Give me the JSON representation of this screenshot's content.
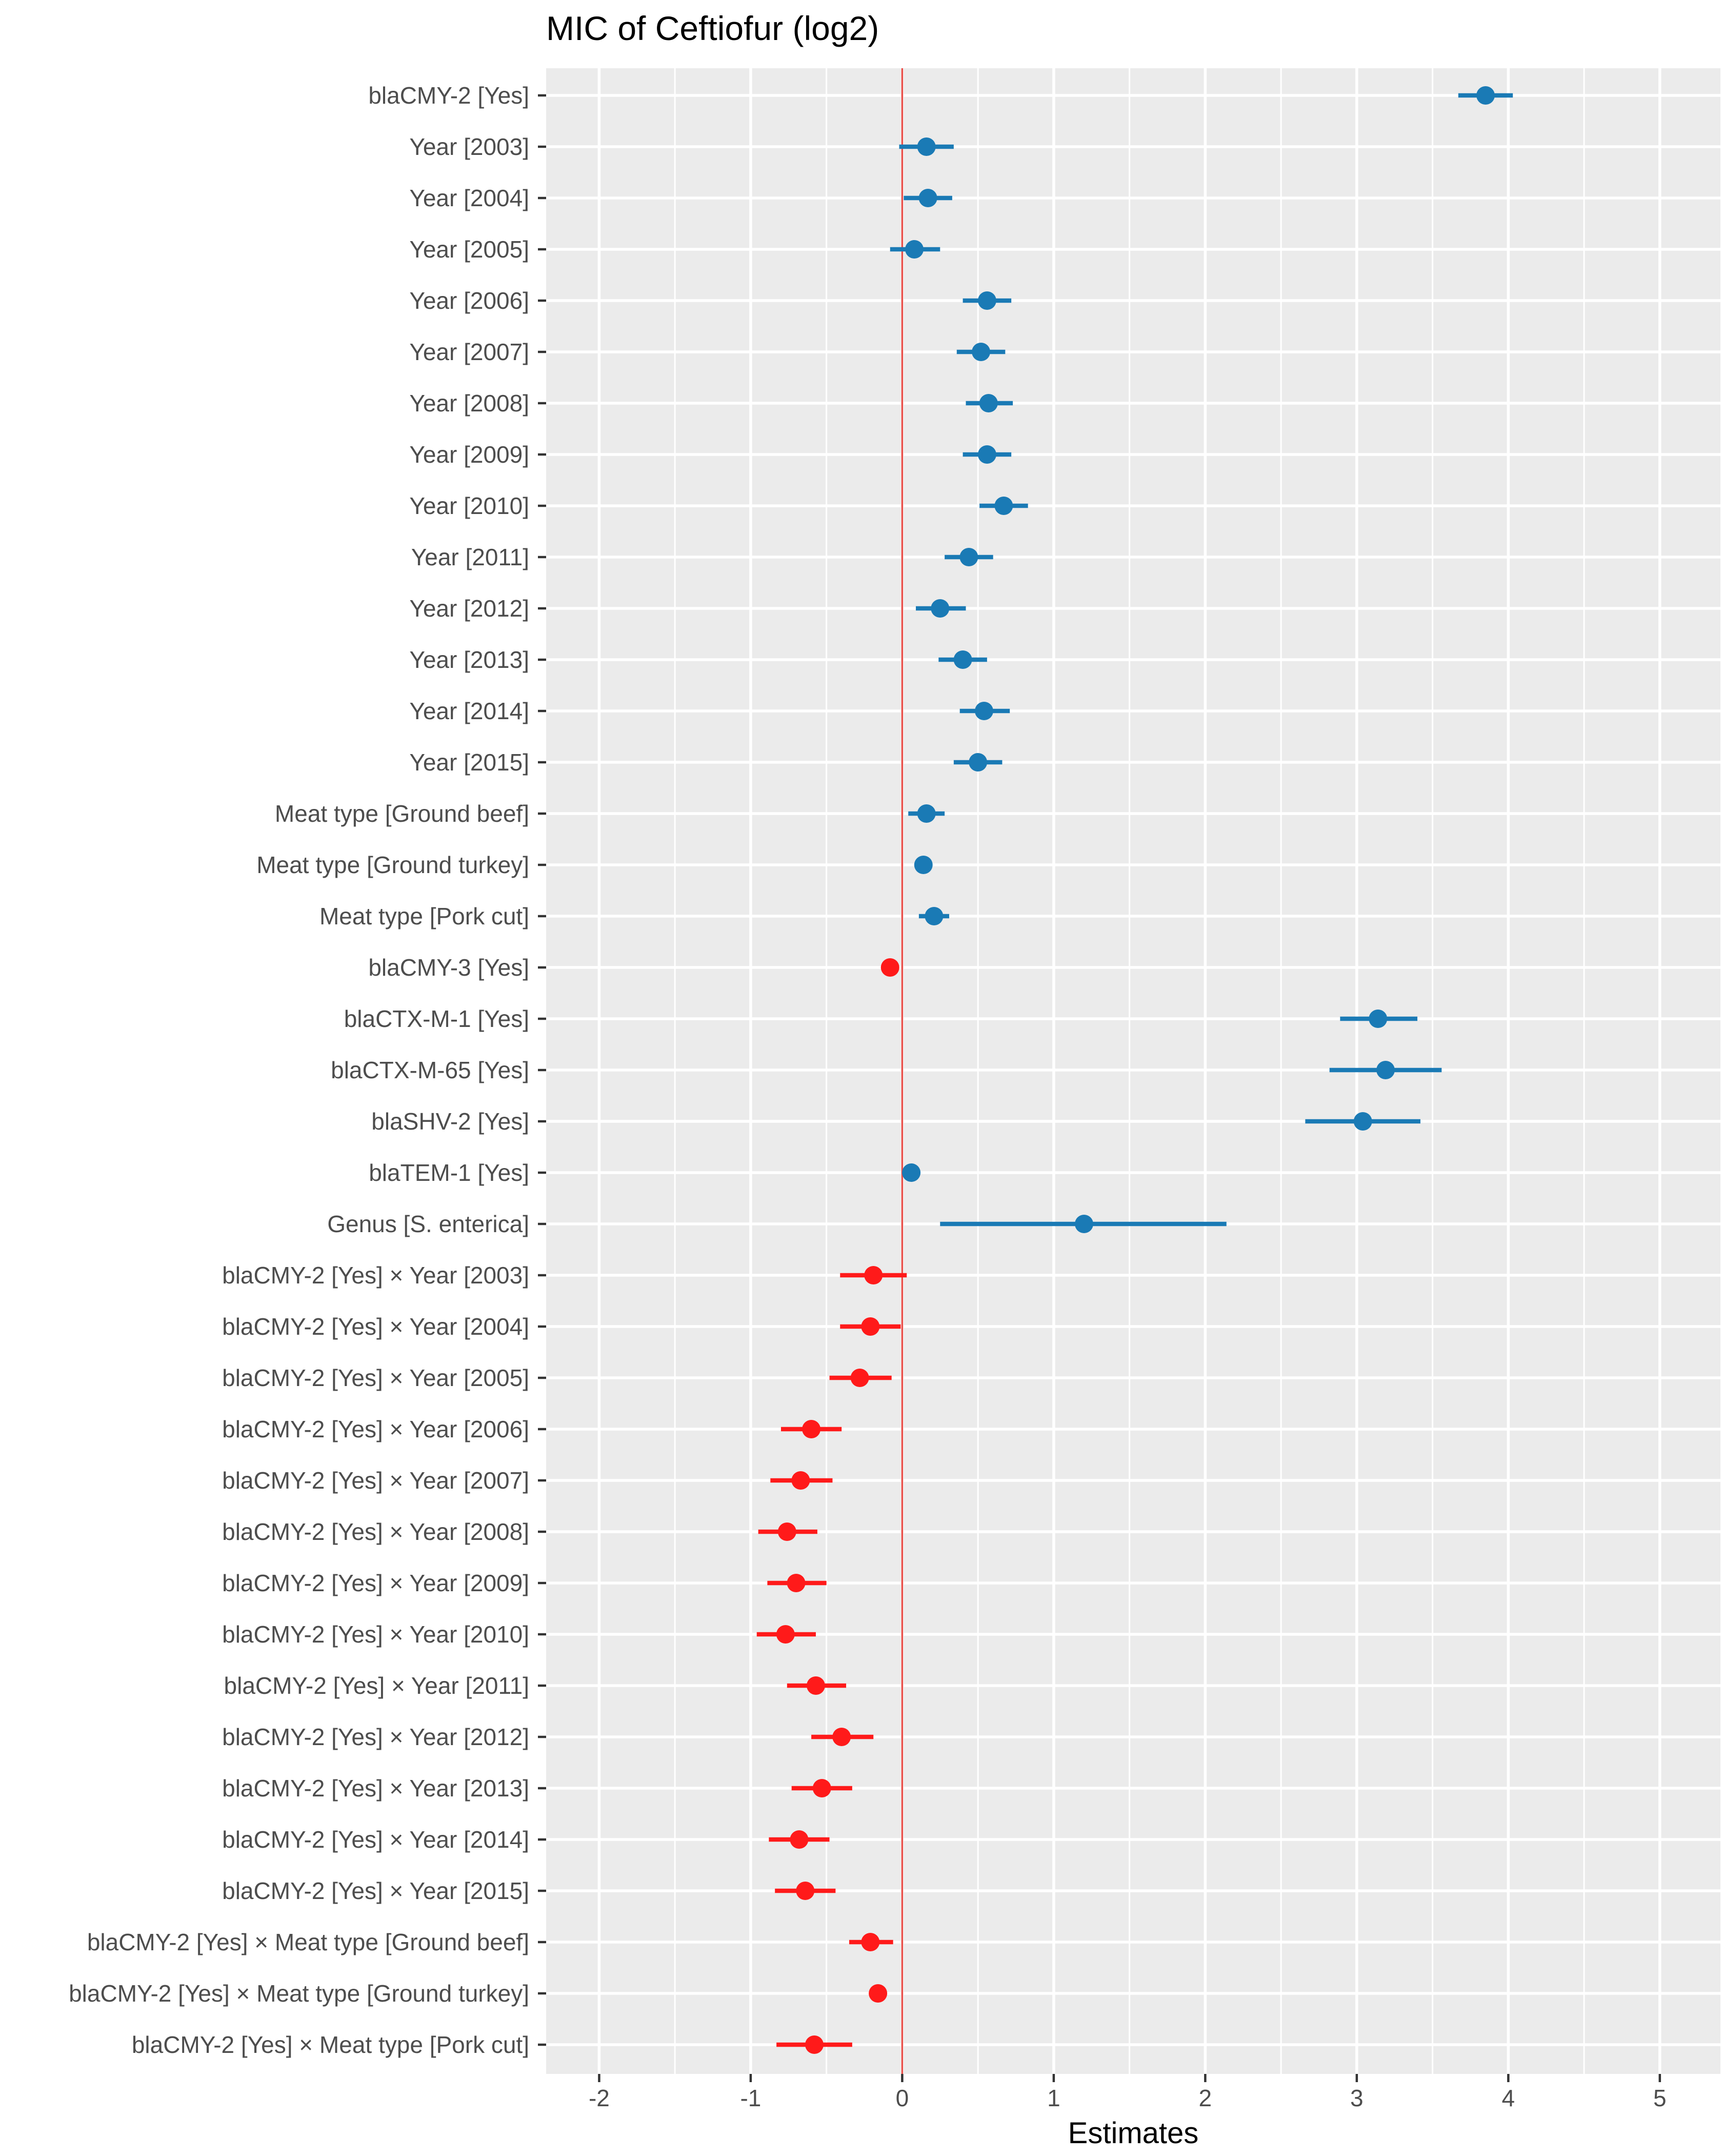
{
  "chart_data": {
    "type": "forest",
    "title": "MIC of Ceftiofur (log2)",
    "xlabel": "Estimates",
    "xlim": [
      -2.35,
      5.4
    ],
    "xticks": [
      -2,
      -1,
      0,
      1,
      2,
      3,
      4,
      5
    ],
    "reference_line_x": 0,
    "colors": {
      "positive": "#1a7ab5",
      "negative": "#ff1a1a",
      "reference": "#e8504a",
      "panel": "#ebebeb",
      "grid": "#ffffff",
      "tick_text": "#4d4d4d"
    },
    "terms": [
      {
        "label": "blaCMY-2 [Yes]",
        "estimate": 3.85,
        "lower": 3.67,
        "upper": 4.03
      },
      {
        "label": "Year [2003]",
        "estimate": 0.16,
        "lower": -0.02,
        "upper": 0.34
      },
      {
        "label": "Year [2004]",
        "estimate": 0.17,
        "lower": 0.01,
        "upper": 0.33
      },
      {
        "label": "Year [2005]",
        "estimate": 0.08,
        "lower": -0.08,
        "upper": 0.25
      },
      {
        "label": "Year [2006]",
        "estimate": 0.56,
        "lower": 0.4,
        "upper": 0.72
      },
      {
        "label": "Year [2007]",
        "estimate": 0.52,
        "lower": 0.36,
        "upper": 0.68
      },
      {
        "label": "Year [2008]",
        "estimate": 0.57,
        "lower": 0.42,
        "upper": 0.73
      },
      {
        "label": "Year [2009]",
        "estimate": 0.56,
        "lower": 0.4,
        "upper": 0.72
      },
      {
        "label": "Year [2010]",
        "estimate": 0.67,
        "lower": 0.51,
        "upper": 0.83
      },
      {
        "label": "Year [2011]",
        "estimate": 0.44,
        "lower": 0.28,
        "upper": 0.6
      },
      {
        "label": "Year [2012]",
        "estimate": 0.25,
        "lower": 0.09,
        "upper": 0.42
      },
      {
        "label": "Year [2013]",
        "estimate": 0.4,
        "lower": 0.24,
        "upper": 0.56
      },
      {
        "label": "Year [2014]",
        "estimate": 0.54,
        "lower": 0.38,
        "upper": 0.71
      },
      {
        "label": "Year [2015]",
        "estimate": 0.5,
        "lower": 0.34,
        "upper": 0.66
      },
      {
        "label": "Meat type [Ground beef]",
        "estimate": 0.16,
        "lower": 0.04,
        "upper": 0.28
      },
      {
        "label": "Meat type [Ground turkey]",
        "estimate": 0.14,
        "lower": 0.11,
        "upper": 0.17
      },
      {
        "label": "Meat type [Pork cut]",
        "estimate": 0.21,
        "lower": 0.11,
        "upper": 0.31
      },
      {
        "label": "blaCMY-3 [Yes]",
        "estimate": -0.08,
        "lower": -0.11,
        "upper": -0.05
      },
      {
        "label": "blaCTX-M-1 [Yes]",
        "estimate": 3.14,
        "lower": 2.89,
        "upper": 3.4
      },
      {
        "label": "blaCTX-M-65 [Yes]",
        "estimate": 3.19,
        "lower": 2.82,
        "upper": 3.56
      },
      {
        "label": "blaSHV-2 [Yes]",
        "estimate": 3.04,
        "lower": 2.66,
        "upper": 3.42
      },
      {
        "label": "blaTEM-1 [Yes]",
        "estimate": 0.06,
        "lower": 0.03,
        "upper": 0.09
      },
      {
        "label": "Genus [S. enterica]",
        "estimate": 1.2,
        "lower": 0.25,
        "upper": 2.14
      },
      {
        "label": "blaCMY-2 [Yes] × Year [2003]",
        "estimate": -0.19,
        "lower": -0.41,
        "upper": 0.03
      },
      {
        "label": "blaCMY-2 [Yes] × Year [2004]",
        "estimate": -0.21,
        "lower": -0.41,
        "upper": -0.01
      },
      {
        "label": "blaCMY-2 [Yes] × Year [2005]",
        "estimate": -0.28,
        "lower": -0.48,
        "upper": -0.07
      },
      {
        "label": "blaCMY-2 [Yes] × Year [2006]",
        "estimate": -0.6,
        "lower": -0.8,
        "upper": -0.4
      },
      {
        "label": "blaCMY-2 [Yes] × Year [2007]",
        "estimate": -0.67,
        "lower": -0.87,
        "upper": -0.46
      },
      {
        "label": "blaCMY-2 [Yes] × Year [2008]",
        "estimate": -0.76,
        "lower": -0.95,
        "upper": -0.56
      },
      {
        "label": "blaCMY-2 [Yes] × Year [2009]",
        "estimate": -0.7,
        "lower": -0.89,
        "upper": -0.5
      },
      {
        "label": "blaCMY-2 [Yes] × Year [2010]",
        "estimate": -0.77,
        "lower": -0.96,
        "upper": -0.57
      },
      {
        "label": "blaCMY-2 [Yes] × Year [2011]",
        "estimate": -0.57,
        "lower": -0.76,
        "upper": -0.37
      },
      {
        "label": "blaCMY-2 [Yes] × Year [2012]",
        "estimate": -0.4,
        "lower": -0.6,
        "upper": -0.19
      },
      {
        "label": "blaCMY-2 [Yes] × Year [2013]",
        "estimate": -0.53,
        "lower": -0.73,
        "upper": -0.33
      },
      {
        "label": "blaCMY-2 [Yes] × Year [2014]",
        "estimate": -0.68,
        "lower": -0.88,
        "upper": -0.48
      },
      {
        "label": "blaCMY-2 [Yes] × Year [2015]",
        "estimate": -0.64,
        "lower": -0.84,
        "upper": -0.44
      },
      {
        "label": "blaCMY-2 [Yes] × Meat type [Ground beef]",
        "estimate": -0.21,
        "lower": -0.35,
        "upper": -0.06
      },
      {
        "label": "blaCMY-2 [Yes] × Meat type [Ground turkey]",
        "estimate": -0.16,
        "lower": -0.19,
        "upper": -0.13
      },
      {
        "label": "blaCMY-2 [Yes] × Meat type [Pork cut]",
        "estimate": -0.58,
        "lower": -0.83,
        "upper": -0.33
      }
    ]
  }
}
